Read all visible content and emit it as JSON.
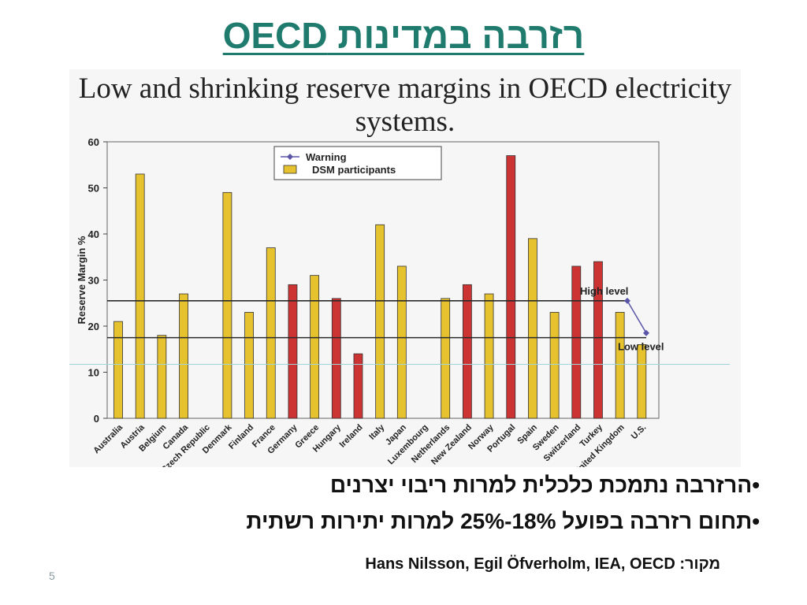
{
  "slide": {
    "title": "רזרבה במדינות OECD",
    "bullets": [
      "•הרזרבה נתמכת כלכלית למרות ריבוי יצרנים",
      "•תחום רזרבה בפועל 18%-25% למרות יתירות רשתית"
    ],
    "source": "מקור: Hans Nilsson, Egil Öfverholm, IEA, OECD",
    "page_number": "5"
  },
  "chart_data": {
    "type": "bar",
    "title": "Low and shrinking reserve margins in OECD electricity systems.",
    "ylabel": "Reserve Margin %",
    "xlabel": "",
    "ylim": [
      0,
      60
    ],
    "yticks": [
      0,
      10,
      20,
      30,
      40,
      50,
      60
    ],
    "categories": [
      "Australia",
      "Austria",
      "Belgium",
      "Canada",
      "Czech Republic",
      "Denmark",
      "Finland",
      "France",
      "Germany",
      "Greece",
      "Hungary",
      "Ireland",
      "Italy",
      "Japan",
      "Luxembourg",
      "Netherlands",
      "New Zealand",
      "Norway",
      "Portugal",
      "Spain",
      "Sweden",
      "Switzerland",
      "Turkey",
      "United Kingdom",
      "U.S."
    ],
    "values": [
      21,
      53,
      18,
      27,
      null,
      49,
      23,
      37,
      29,
      31,
      26,
      14,
      42,
      33,
      null,
      26,
      29,
      27,
      57,
      39,
      23,
      33,
      34,
      23,
      16
    ],
    "dsm_participant": [
      true,
      true,
      true,
      true,
      false,
      true,
      true,
      true,
      false,
      true,
      false,
      false,
      true,
      true,
      false,
      true,
      false,
      true,
      false,
      true,
      true,
      false,
      false,
      true,
      true
    ],
    "colors": {
      "dsm": "#e6c22f",
      "other": "#cc3333",
      "line": "#2a2a2a",
      "warning_marker": "#5a55a8"
    },
    "legend": {
      "position": "top-center",
      "entries": [
        "Warning",
        "DSM participants"
      ]
    },
    "reference_lines": [
      {
        "label": "High level",
        "value": 25.5
      },
      {
        "label": "Low level",
        "value": 17.5
      }
    ],
    "warning_points": [
      25.5,
      18.5
    ],
    "grid": false
  }
}
